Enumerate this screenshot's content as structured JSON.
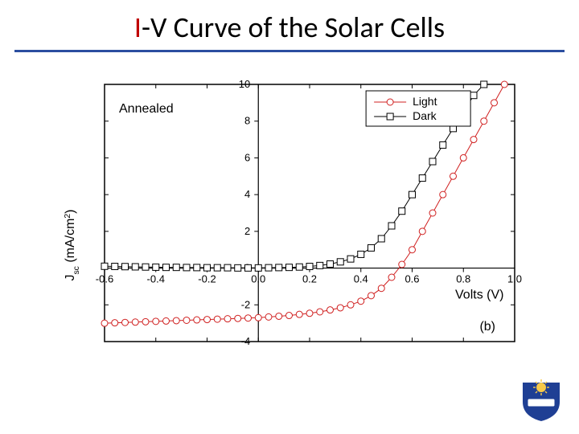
{
  "title": {
    "accent": "I",
    "main": "-V Curve of the Solar Cells"
  },
  "annealed_label": "Annealed",
  "panel_label": "(b)",
  "legend": {
    "light": "Light",
    "dark": "Dark"
  },
  "axes": {
    "xlabel": "Volts (V)",
    "ylabel": "J",
    "ylabel_sub": "sc",
    "ylabel_units": " (mA/cm",
    "ylabel_sup": "2",
    "ylabel_close": ")",
    "xlim": [
      -0.6,
      1.0
    ],
    "ylim": [
      -4,
      10
    ],
    "xticks": [
      -0.6,
      -0.4,
      -0.2,
      0.0,
      0.2,
      0.4,
      0.6,
      0.8,
      1.0
    ],
    "yticks": [
      -4,
      -2,
      0,
      2,
      4,
      6,
      8,
      10
    ],
    "label_fontsize": 16,
    "tick_fontsize": 13,
    "axis_color": "#000000",
    "background": "#ffffff"
  },
  "series": {
    "light": {
      "color": "#d02020",
      "marker": "circle",
      "marker_size": 4,
      "line_width": 1,
      "points": [
        [
          -0.6,
          -3.0
        ],
        [
          -0.56,
          -2.98
        ],
        [
          -0.52,
          -2.96
        ],
        [
          -0.48,
          -2.94
        ],
        [
          -0.44,
          -2.92
        ],
        [
          -0.4,
          -2.9
        ],
        [
          -0.36,
          -2.88
        ],
        [
          -0.32,
          -2.86
        ],
        [
          -0.28,
          -2.84
        ],
        [
          -0.24,
          -2.82
        ],
        [
          -0.2,
          -2.8
        ],
        [
          -0.16,
          -2.78
        ],
        [
          -0.12,
          -2.76
        ],
        [
          -0.08,
          -2.74
        ],
        [
          -0.04,
          -2.72
        ],
        [
          0.0,
          -2.7
        ],
        [
          0.04,
          -2.66
        ],
        [
          0.08,
          -2.62
        ],
        [
          0.12,
          -2.58
        ],
        [
          0.16,
          -2.52
        ],
        [
          0.2,
          -2.46
        ],
        [
          0.24,
          -2.38
        ],
        [
          0.28,
          -2.28
        ],
        [
          0.32,
          -2.16
        ],
        [
          0.36,
          -2.0
        ],
        [
          0.4,
          -1.8
        ],
        [
          0.44,
          -1.5
        ],
        [
          0.48,
          -1.1
        ],
        [
          0.52,
          -0.5
        ],
        [
          0.56,
          0.2
        ],
        [
          0.6,
          1.0
        ],
        [
          0.64,
          2.0
        ],
        [
          0.68,
          3.0
        ],
        [
          0.72,
          4.0
        ],
        [
          0.76,
          5.0
        ],
        [
          0.8,
          6.0
        ],
        [
          0.84,
          7.0
        ],
        [
          0.88,
          8.0
        ],
        [
          0.92,
          9.0
        ],
        [
          0.96,
          10.0
        ]
      ]
    },
    "dark": {
      "color": "#000000",
      "marker": "square",
      "marker_size": 4,
      "line_width": 1,
      "points": [
        [
          -0.6,
          0.1
        ],
        [
          -0.56,
          0.09
        ],
        [
          -0.52,
          0.08
        ],
        [
          -0.48,
          0.07
        ],
        [
          -0.44,
          0.06
        ],
        [
          -0.4,
          0.05
        ],
        [
          -0.36,
          0.04
        ],
        [
          -0.32,
          0.04
        ],
        [
          -0.28,
          0.03
        ],
        [
          -0.24,
          0.03
        ],
        [
          -0.2,
          0.02
        ],
        [
          -0.16,
          0.02
        ],
        [
          -0.12,
          0.02
        ],
        [
          -0.08,
          0.01
        ],
        [
          -0.04,
          0.01
        ],
        [
          0.0,
          0.01
        ],
        [
          0.04,
          0.02
        ],
        [
          0.08,
          0.03
        ],
        [
          0.12,
          0.04
        ],
        [
          0.16,
          0.06
        ],
        [
          0.2,
          0.09
        ],
        [
          0.24,
          0.14
        ],
        [
          0.28,
          0.22
        ],
        [
          0.32,
          0.34
        ],
        [
          0.36,
          0.5
        ],
        [
          0.4,
          0.75
        ],
        [
          0.44,
          1.1
        ],
        [
          0.48,
          1.6
        ],
        [
          0.52,
          2.3
        ],
        [
          0.56,
          3.1
        ],
        [
          0.6,
          4.0
        ],
        [
          0.64,
          4.9
        ],
        [
          0.68,
          5.8
        ],
        [
          0.72,
          6.7
        ],
        [
          0.76,
          7.6
        ],
        [
          0.8,
          8.5
        ],
        [
          0.84,
          9.4
        ],
        [
          0.88,
          10.0
        ]
      ]
    }
  },
  "logo_colors": {
    "shield": "#1f3f94",
    "sun": "#f7c948",
    "banner": "#1f3f94"
  }
}
